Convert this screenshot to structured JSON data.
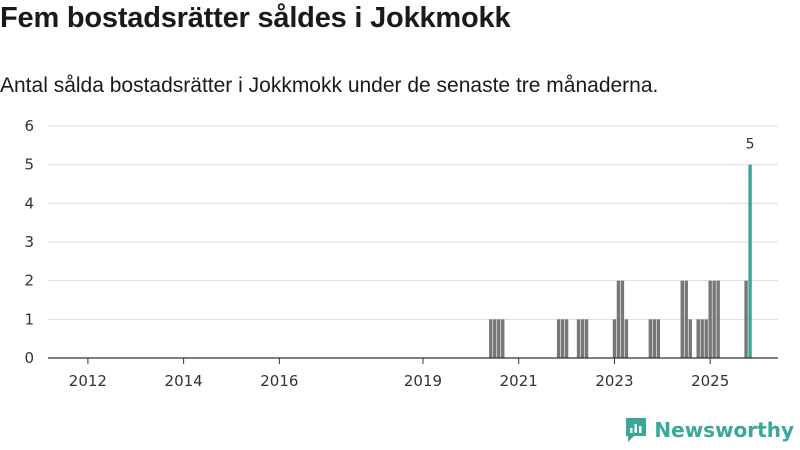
{
  "title": "Fem bostadsrätter såldes i Jokkmokk",
  "subtitle": "Antal sålda bostadsrätter i Jokkmokk under de senaste tre månaderna.",
  "brand": {
    "name": "Newsworthy",
    "color": "#3aa79a",
    "icon": "newsworthy-logo-icon"
  },
  "chart_data": {
    "type": "bar",
    "title": "Fem bostadsrätter såldes i Jokkmokk",
    "subtitle": "Antal sålda bostadsrätter i Jokkmokk under de senaste tre månaderna.",
    "xlabel": "",
    "ylabel": "",
    "xlim": [
      "2011-03",
      "2026-06"
    ],
    "ylim": [
      0,
      6
    ],
    "y_ticks": [
      0,
      1,
      2,
      3,
      4,
      5,
      6
    ],
    "x_ticks": [
      "2012",
      "2014",
      "2016",
      "2019",
      "2021",
      "2023",
      "2025"
    ],
    "grid": true,
    "colors": {
      "bar": "#777777",
      "highlight": "#3aa79a",
      "grid": "#dddddd",
      "axis": "#333333"
    },
    "highlight_label": "5",
    "bars": [
      {
        "x": "2020-06",
        "value": 1
      },
      {
        "x": "2020-07",
        "value": 1
      },
      {
        "x": "2020-08",
        "value": 1
      },
      {
        "x": "2020-09",
        "value": 1
      },
      {
        "x": "2021-11",
        "value": 1
      },
      {
        "x": "2021-12",
        "value": 1
      },
      {
        "x": "2022-01",
        "value": 1
      },
      {
        "x": "2022-04",
        "value": 1
      },
      {
        "x": "2022-05",
        "value": 1
      },
      {
        "x": "2022-06",
        "value": 1
      },
      {
        "x": "2023-01",
        "value": 1
      },
      {
        "x": "2023-02",
        "value": 2
      },
      {
        "x": "2023-03",
        "value": 2
      },
      {
        "x": "2023-04",
        "value": 1
      },
      {
        "x": "2023-10",
        "value": 1
      },
      {
        "x": "2023-11",
        "value": 1
      },
      {
        "x": "2023-12",
        "value": 1
      },
      {
        "x": "2024-06",
        "value": 2
      },
      {
        "x": "2024-07",
        "value": 2
      },
      {
        "x": "2024-08",
        "value": 1
      },
      {
        "x": "2024-10",
        "value": 1
      },
      {
        "x": "2024-11",
        "value": 1
      },
      {
        "x": "2024-12",
        "value": 1
      },
      {
        "x": "2025-01",
        "value": 2
      },
      {
        "x": "2025-02",
        "value": 2
      },
      {
        "x": "2025-03",
        "value": 2
      },
      {
        "x": "2025-10",
        "value": 2
      },
      {
        "x": "2025-11",
        "value": 5,
        "highlight": true
      }
    ]
  }
}
